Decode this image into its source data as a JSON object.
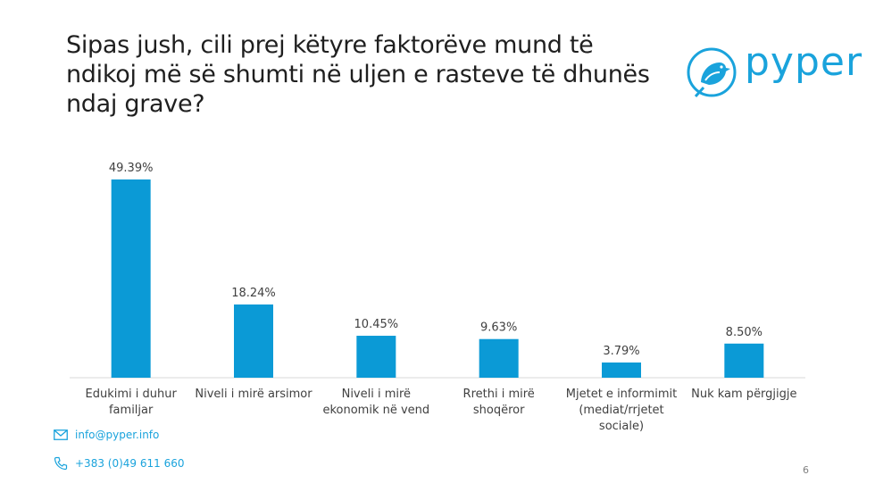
{
  "slide": {
    "title": "Sipas jush, cili prej këtyre faktorëve mund të ndikoj më së shumti në uljen e rasteve të dhunës ndaj grave?",
    "logo_text": "pyper",
    "page_number": "6"
  },
  "footer": {
    "email": "info@pyper.info",
    "phone": "+383 (0)49 611 660",
    "email_icon": "mail-icon",
    "phone_icon": "phone-icon"
  },
  "colors": {
    "bar": "#0b9ad6",
    "accent": "#1aa3dc",
    "axis": "#d9d9d9"
  },
  "chart_data": {
    "type": "bar",
    "categories": [
      [
        "Edukimi i duhur",
        "familjar"
      ],
      [
        "Niveli i mirë arsimor"
      ],
      [
        "Niveli i mirë",
        "ekonomik në vend"
      ],
      [
        "Rrethi i mirë",
        "shoqëror"
      ],
      [
        "Mjetet e informimit",
        "(mediat/rrjetet",
        "sociale)"
      ],
      [
        "Nuk kam përgjigje"
      ]
    ],
    "values": [
      49.39,
      18.24,
      10.45,
      9.63,
      3.79,
      8.5
    ],
    "data_labels": [
      "49.39%",
      "18.24%",
      "10.45%",
      "9.63%",
      "3.79%",
      "8.50%"
    ],
    "ylim": [
      0,
      49.39
    ],
    "grid": false,
    "legend": false
  }
}
